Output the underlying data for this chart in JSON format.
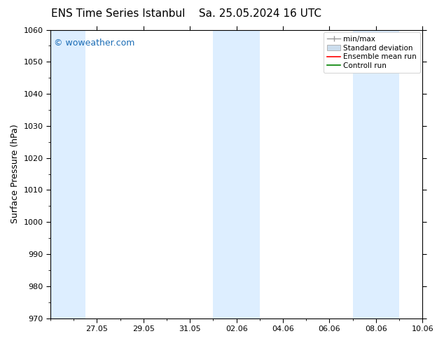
{
  "title_left": "ENS Time Series Istanbul",
  "title_right": "Sa. 25.05.2024 16 UTC",
  "ylabel": "Surface Pressure (hPa)",
  "ylim": [
    970,
    1060
  ],
  "yticks": [
    970,
    980,
    990,
    1000,
    1010,
    1020,
    1030,
    1040,
    1050,
    1060
  ],
  "xlim": [
    0,
    16
  ],
  "xtick_labels": [
    "27.05",
    "29.05",
    "31.05",
    "02.06",
    "04.06",
    "06.06",
    "08.06",
    "10.06"
  ],
  "xtick_positions": [
    2,
    4,
    6,
    8,
    10,
    12,
    14,
    16
  ],
  "shade_bands": [
    {
      "x_start": 0.0,
      "x_end": 1.5,
      "color": "#ddeeff"
    },
    {
      "x_start": 7.0,
      "x_end": 9.0,
      "color": "#ddeeff"
    },
    {
      "x_start": 13.0,
      "x_end": 15.0,
      "color": "#ddeeff"
    }
  ],
  "watermark_text": "© woweather.com",
  "watermark_color": "#1a6cb5",
  "background_color": "#ffffff",
  "plot_bg_color": "#ffffff",
  "legend_items": [
    {
      "label": "min/max",
      "color": "#aaaaaa",
      "style": "errorbar"
    },
    {
      "label": "Standard deviation",
      "color": "#ccdded",
      "style": "box"
    },
    {
      "label": "Ensemble mean run",
      "color": "#ff0000",
      "style": "line"
    },
    {
      "label": "Controll run",
      "color": "#008000",
      "style": "line"
    }
  ],
  "title_fontsize": 11,
  "axis_label_fontsize": 9,
  "tick_fontsize": 8,
  "legend_fontsize": 7.5,
  "watermark_fontsize": 9
}
